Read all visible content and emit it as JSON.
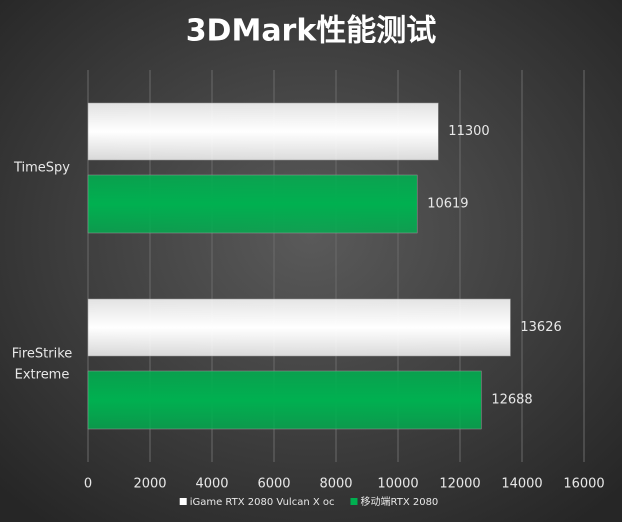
{
  "chart_data": {
    "type": "bar",
    "orientation": "horizontal",
    "title": "3DMark性能测试",
    "categories": [
      "TimeSpy",
      "FireStrike Extreme"
    ],
    "series": [
      {
        "name": "iGame RTX 2080 Vulcan X oc",
        "color": "#ffffff",
        "values": [
          11300,
          13626
        ]
      },
      {
        "name": "移动端RTX 2080",
        "color": "#00b050",
        "values": [
          10619,
          12688
        ]
      }
    ],
    "xlim": [
      0,
      16000
    ],
    "xticks": [
      0,
      2000,
      4000,
      6000,
      8000,
      10000,
      12000,
      14000,
      16000
    ],
    "grid": true,
    "legend": "bottom"
  }
}
